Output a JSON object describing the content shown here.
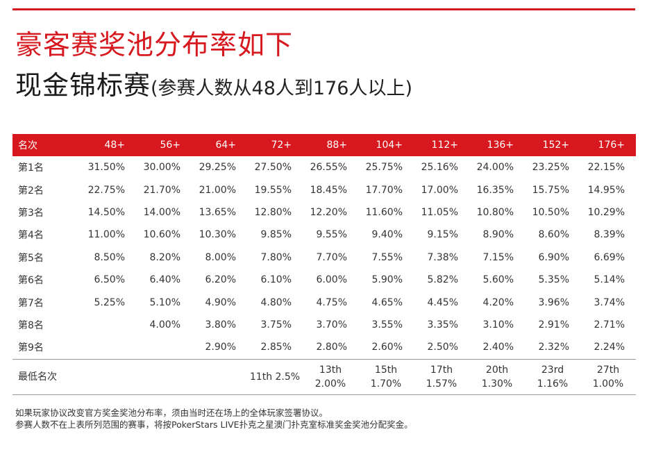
{
  "title_line1": "豪客赛奖池分布率如下",
  "title_line2_main": "现金锦标赛",
  "title_line2_sub": "(参赛人数从48人到176人以上)",
  "colors": {
    "accent": "#d7191f",
    "text": "#222222"
  },
  "table": {
    "header": [
      "名次",
      "48+",
      "56+",
      "64+",
      "72+",
      "88+",
      "104+",
      "112+",
      "136+",
      "152+",
      "176+"
    ],
    "rows": [
      [
        "第1名",
        "31.50%",
        "30.00%",
        "29.25%",
        "27.50%",
        "26.55%",
        "25.75%",
        "25.16%",
        "24.00%",
        "23.25%",
        "22.15%"
      ],
      [
        "第2名",
        "22.75%",
        "21.70%",
        "21.00%",
        "19.55%",
        "18.45%",
        "17.70%",
        "17.00%",
        "16.35%",
        "15.75%",
        "14.95%"
      ],
      [
        "第3名",
        "14.50%",
        "14.00%",
        "13.65%",
        "12.80%",
        "12.20%",
        "11.60%",
        "11.05%",
        "10.80%",
        "10.50%",
        "10.29%"
      ],
      [
        "第4名",
        "11.00%",
        "10.60%",
        "10.30%",
        "9.85%",
        "9.55%",
        "9.40%",
        "9.15%",
        "8.90%",
        "8.60%",
        "8.39%"
      ],
      [
        "第5名",
        "8.50%",
        "8.20%",
        "8.00%",
        "7.80%",
        "7.70%",
        "7.55%",
        "7.38%",
        "7.15%",
        "6.90%",
        "6.69%"
      ],
      [
        "第6名",
        "6.50%",
        "6.40%",
        "6.20%",
        "6.10%",
        "6.00%",
        "5.90%",
        "5.82%",
        "5.60%",
        "5.35%",
        "5.14%"
      ],
      [
        "第7名",
        "5.25%",
        "5.10%",
        "4.90%",
        "4.80%",
        "4.75%",
        "4.65%",
        "4.45%",
        "4.20%",
        "3.96%",
        "3.74%"
      ],
      [
        "第8名",
        "",
        "4.00%",
        "3.80%",
        "3.75%",
        "3.70%",
        "3.55%",
        "3.35%",
        "3.10%",
        "2.91%",
        "2.71%"
      ],
      [
        "第9名",
        "",
        "",
        "2.90%",
        "2.85%",
        "2.80%",
        "2.60%",
        "2.50%",
        "2.40%",
        "2.32%",
        "2.24%"
      ]
    ],
    "min_row": {
      "label": "最低名次",
      "cells": [
        [
          "",
          ""
        ],
        [
          "",
          ""
        ],
        [
          "",
          ""
        ],
        [
          "11th 2.5%",
          ""
        ],
        [
          "13th",
          "2.00%"
        ],
        [
          "15th",
          "1.70%"
        ],
        [
          "17th",
          "1.57%"
        ],
        [
          "20th",
          "1.30%"
        ],
        [
          "23rd",
          "1.16%"
        ],
        [
          "27th",
          "1.00%"
        ]
      ]
    }
  },
  "notes": [
    "如果玩家协议改变官方奖金奖池分布率，须由当时还在场上的全体玩家签署协议。",
    "参赛人数不在上表所列范围的赛事，将按PokerStars LIVE扑克之星澳门扑克室标准奖金奖池分配奖金。"
  ]
}
